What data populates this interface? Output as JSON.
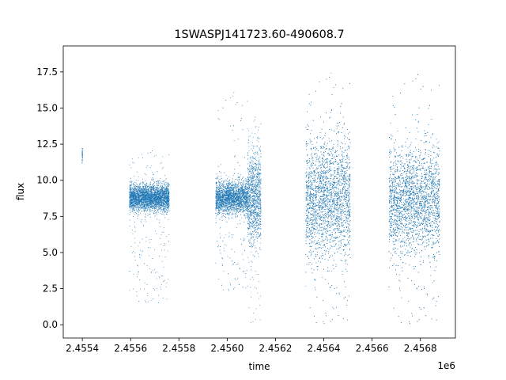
{
  "chart_data": {
    "type": "scatter",
    "title": "1SWASPJ141723.60-490608.7",
    "xlabel": "time",
    "ylabel": "flux",
    "x_offset_label": "1e6",
    "xlim": [
      2455321,
      2456945
    ],
    "ylim": [
      -0.92,
      19.3
    ],
    "x_ticks": [
      2455400,
      2455600,
      2455800,
      2456000,
      2456200,
      2456400,
      2456600,
      2456800
    ],
    "x_tick_labels": [
      "2.4554",
      "2.4556",
      "2.4558",
      "2.4560",
      "2.4562",
      "2.4564",
      "2.4566",
      "2.4568"
    ],
    "y_ticks": [
      0.0,
      2.5,
      5.0,
      7.5,
      10.0,
      12.5,
      15.0,
      17.5
    ],
    "y_tick_labels": [
      "0.0",
      "2.5",
      "5.0",
      "7.5",
      "10.0",
      "12.5",
      "15.0",
      "17.5"
    ],
    "grid": false,
    "series": [
      {
        "color": "#1f77b4",
        "segments": [
          {
            "x_start": 2455399,
            "x_end": 2455401,
            "median": 11.8,
            "spread": 0.35,
            "min": 11.2,
            "max": 12.2
          },
          {
            "x_start": 2455595,
            "x_end": 2455760,
            "median": 8.8,
            "spread": 0.45,
            "min": 1.5,
            "max": 12.4
          },
          {
            "x_start": 2455952,
            "x_end": 2456085,
            "median": 8.8,
            "spread": 0.55,
            "min": 2.3,
            "max": 16.9
          },
          {
            "x_start": 2456085,
            "x_end": 2456140,
            "median": 8.8,
            "spread": 1.6,
            "min": 0.0,
            "max": 15.0
          },
          {
            "x_start": 2456325,
            "x_end": 2456510,
            "median": 8.8,
            "spread": 2.0,
            "min": 0.0,
            "max": 18.4
          },
          {
            "x_start": 2456670,
            "x_end": 2456880,
            "median": 8.6,
            "spread": 1.8,
            "min": 0.0,
            "max": 18.3
          }
        ]
      }
    ]
  }
}
